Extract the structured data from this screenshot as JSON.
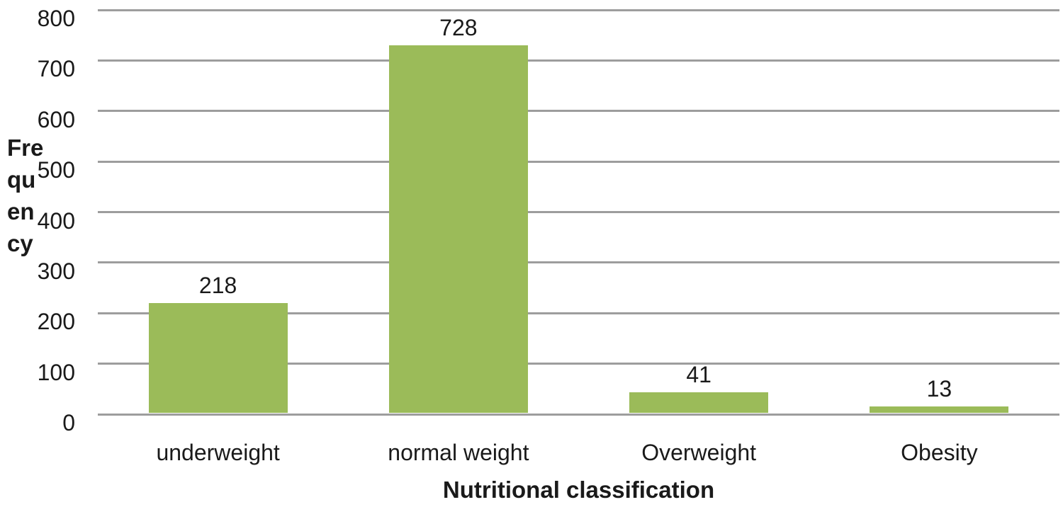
{
  "chart_data": {
    "type": "bar",
    "title": "",
    "categories": [
      "underweight",
      "normal weight",
      "Overweight",
      "Obesity"
    ],
    "values": [
      218,
      728,
      41,
      13
    ],
    "data_labels": [
      "218",
      "728",
      "41",
      "13"
    ],
    "xlabel": "Nutritional classification",
    "ylabel": "Frequency",
    "ylabel_lines": [
      "Fre",
      "qu",
      "en",
      "cy"
    ],
    "y_ticks": [
      0,
      100,
      200,
      300,
      400,
      500,
      600,
      700,
      800
    ],
    "y_tick_labels": [
      "0",
      "100",
      "200",
      "300",
      "400",
      "500",
      "600",
      "700",
      "800"
    ],
    "ylim": [
      0,
      800
    ],
    "grid": "horizontal gridlines on",
    "legend": "none",
    "colors": {
      "bar": "#9bbb59",
      "gridline": "#9d9d9d",
      "text": "#1a1a1a",
      "background": "#ffffff"
    }
  }
}
